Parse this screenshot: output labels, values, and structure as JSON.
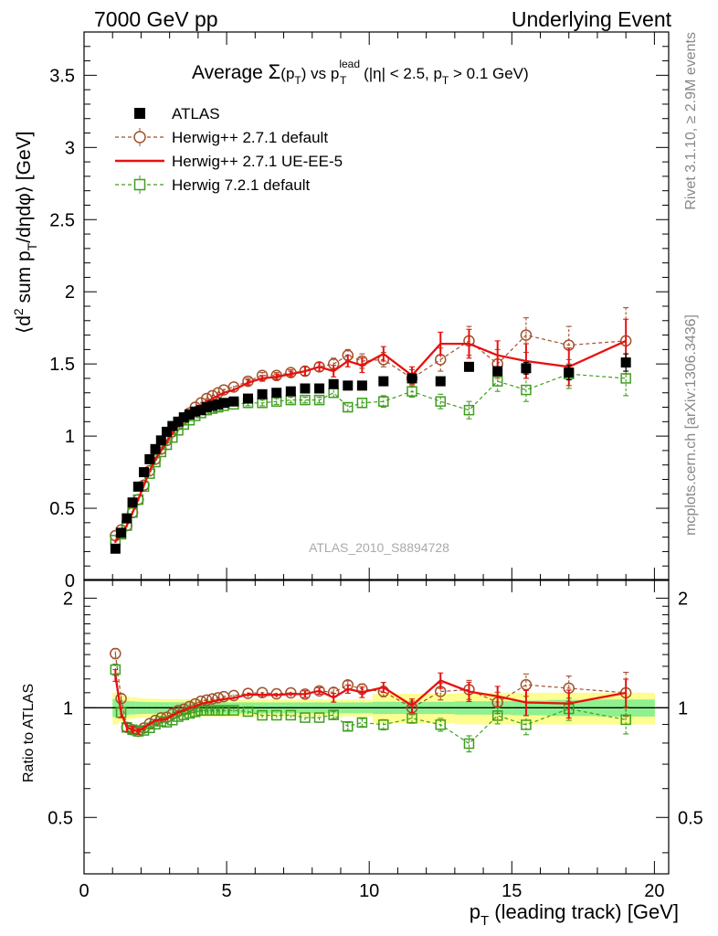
{
  "header": {
    "left": "7000 GeV pp",
    "right": "Underlying Event"
  },
  "side_labels": {
    "rivet": "Rivet 3.1.10, ≥ 2.9M events",
    "mcplots": "mcplots.cern.ch [arXiv:1306.3436]"
  },
  "watermark": "ATLAS_2010_S8894728",
  "chart_data": [
    {
      "type": "scatter",
      "title": "Average Σ(pT) vs pT lead (|η| < 2.5, pT > 0.1 GeV)",
      "ylabel": "⟨d² sum pT/dηdφ⟩ [GeV]",
      "xlim": [
        0,
        20.5
      ],
      "ylim": [
        0,
        3.8
      ],
      "x_ticks": [
        0,
        5,
        10,
        15,
        20
      ],
      "y_ticks": [
        0,
        0.5,
        1,
        1.5,
        2,
        2.5,
        3,
        3.5
      ],
      "y_tick_labels": [
        "0",
        "0.5",
        "1",
        "1.5",
        "2",
        "2.5",
        "3",
        "3.5"
      ],
      "legend_position": "top-left",
      "x": [
        1.1,
        1.3,
        1.5,
        1.7,
        1.9,
        2.1,
        2.3,
        2.5,
        2.7,
        2.9,
        3.1,
        3.3,
        3.5,
        3.7,
        3.9,
        4.1,
        4.3,
        4.5,
        4.7,
        4.9,
        5.25,
        5.75,
        6.25,
        6.75,
        7.25,
        7.75,
        8.25,
        8.75,
        9.25,
        9.75,
        10.5,
        11.5,
        12.5,
        13.5,
        14.5,
        15.5,
        17,
        19
      ],
      "series": [
        {
          "name": "ATLAS",
          "color": "#000000",
          "style": "marker",
          "values": [
            0.22,
            0.33,
            0.43,
            0.54,
            0.65,
            0.75,
            0.84,
            0.91,
            0.97,
            1.03,
            1.07,
            1.1,
            1.13,
            1.15,
            1.17,
            1.18,
            1.2,
            1.21,
            1.22,
            1.23,
            1.24,
            1.26,
            1.29,
            1.3,
            1.31,
            1.33,
            1.33,
            1.36,
            1.35,
            1.35,
            1.38,
            1.4,
            1.38,
            1.48,
            1.45,
            1.47,
            1.44,
            1.51
          ],
          "errors": [
            0.01,
            0.01,
            0.01,
            0.01,
            0.01,
            0.01,
            0.01,
            0.01,
            0.01,
            0.01,
            0.01,
            0.01,
            0.01,
            0.01,
            0.01,
            0.01,
            0.01,
            0.01,
            0.01,
            0.01,
            0.01,
            0.01,
            0.01,
            0.01,
            0.01,
            0.01,
            0.01,
            0.01,
            0.01,
            0.01,
            0.02,
            0.02,
            0.02,
            0.03,
            0.03,
            0.04,
            0.05,
            0.06
          ]
        },
        {
          "name": "Herwig++ 2.7.1 default",
          "color": "#a0522d",
          "style": "dashed-circle",
          "values": [
            0.31,
            0.35,
            0.38,
            0.47,
            0.56,
            0.66,
            0.76,
            0.84,
            0.91,
            0.97,
            1.03,
            1.08,
            1.12,
            1.16,
            1.2,
            1.23,
            1.26,
            1.28,
            1.3,
            1.32,
            1.34,
            1.38,
            1.42,
            1.42,
            1.44,
            1.45,
            1.48,
            1.5,
            1.56,
            1.52,
            1.53,
            1.4,
            1.53,
            1.66,
            1.5,
            1.7,
            1.63,
            1.66
          ],
          "errors": [
            0.01,
            0.01,
            0.01,
            0.01,
            0.01,
            0.01,
            0.01,
            0.01,
            0.01,
            0.01,
            0.01,
            0.01,
            0.01,
            0.01,
            0.01,
            0.01,
            0.01,
            0.01,
            0.01,
            0.01,
            0.01,
            0.02,
            0.02,
            0.02,
            0.02,
            0.03,
            0.03,
            0.04,
            0.04,
            0.05,
            0.05,
            0.06,
            0.08,
            0.1,
            0.1,
            0.12,
            0.13,
            0.23
          ]
        },
        {
          "name": "Herwig++ 2.7.1 UE-EE-5",
          "color": "#e8110f",
          "style": "solid",
          "values": [
            0.27,
            0.32,
            0.38,
            0.47,
            0.56,
            0.66,
            0.76,
            0.84,
            0.9,
            0.96,
            1.02,
            1.07,
            1.11,
            1.15,
            1.18,
            1.21,
            1.24,
            1.26,
            1.28,
            1.3,
            1.32,
            1.37,
            1.4,
            1.41,
            1.43,
            1.45,
            1.48,
            1.45,
            1.52,
            1.49,
            1.57,
            1.42,
            1.64,
            1.64,
            1.56,
            1.52,
            1.48,
            1.66
          ],
          "errors": [
            0.01,
            0.01,
            0.01,
            0.01,
            0.01,
            0.01,
            0.01,
            0.01,
            0.01,
            0.01,
            0.01,
            0.01,
            0.01,
            0.01,
            0.01,
            0.01,
            0.01,
            0.01,
            0.01,
            0.01,
            0.01,
            0.02,
            0.02,
            0.02,
            0.02,
            0.03,
            0.03,
            0.04,
            0.04,
            0.05,
            0.05,
            0.06,
            0.08,
            0.1,
            0.1,
            0.12,
            0.13,
            0.15
          ]
        },
        {
          "name": "Herwig 7.2.1 default",
          "color": "#3f9f1f",
          "style": "dashed-square",
          "values": [
            0.28,
            0.32,
            0.38,
            0.47,
            0.56,
            0.65,
            0.74,
            0.82,
            0.89,
            0.94,
            0.99,
            1.04,
            1.08,
            1.11,
            1.14,
            1.16,
            1.18,
            1.19,
            1.2,
            1.21,
            1.22,
            1.23,
            1.23,
            1.24,
            1.25,
            1.25,
            1.25,
            1.3,
            1.2,
            1.23,
            1.24,
            1.31,
            1.24,
            1.18,
            1.38,
            1.32,
            1.43,
            1.4
          ],
          "errors": [
            0.01,
            0.01,
            0.01,
            0.01,
            0.01,
            0.01,
            0.01,
            0.01,
            0.01,
            0.01,
            0.01,
            0.01,
            0.01,
            0.01,
            0.01,
            0.01,
            0.01,
            0.01,
            0.01,
            0.01,
            0.01,
            0.02,
            0.02,
            0.02,
            0.02,
            0.02,
            0.02,
            0.03,
            0.03,
            0.03,
            0.04,
            0.04,
            0.05,
            0.06,
            0.07,
            0.08,
            0.1,
            0.12
          ]
        }
      ]
    },
    {
      "type": "line",
      "xlabel": "pT (leading track) [GeV]",
      "ylabel": "Ratio to ATLAS",
      "xlim": [
        0,
        20.5
      ],
      "ylim": [
        0.35,
        2.25
      ],
      "y_scale": "log",
      "x_ticks": [
        0,
        5,
        10,
        15,
        20
      ],
      "x_tick_labels": [
        "0",
        "5",
        "10",
        "15",
        "20"
      ],
      "y_ticks": [
        0.5,
        1,
        2
      ],
      "y_tick_labels": [
        "0.5",
        "1",
        "2"
      ],
      "reference_line": 1,
      "band_colors": {
        "inner": "#8ff08f",
        "outer": "#fdfd90"
      }
    }
  ]
}
